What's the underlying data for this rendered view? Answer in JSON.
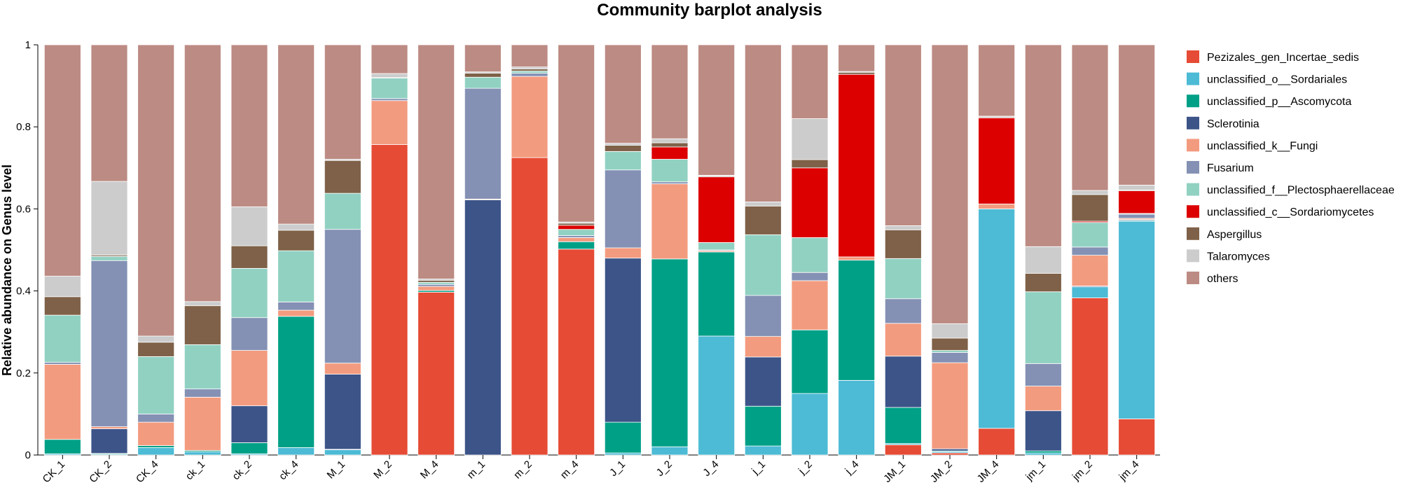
{
  "chart_data": {
    "type": "bar",
    "stacked": true,
    "title": "Community barplot analysis",
    "xlabel": "",
    "ylabel": "Relative abundance on Genus level",
    "ylim": [
      0,
      1
    ],
    "yticks": [
      "0",
      "0.2",
      "0.4",
      "0.6",
      "0.8",
      "1"
    ],
    "grid": false,
    "legend_position": "right",
    "categories": [
      "CK_1",
      "CK_2",
      "CK_4",
      "ck_1",
      "ck_2",
      "ck_4",
      "M_1",
      "M_2",
      "M_4",
      "m_1",
      "m_2",
      "m_4",
      "J_1",
      "J_2",
      "J_4",
      "j_1",
      "j_2",
      "j_4",
      "JM_1",
      "JM_2",
      "JM_4",
      "jm_1",
      "jm_2",
      "jm_4"
    ],
    "series": [
      {
        "name": "Pezizales_gen_Incertae_sedis",
        "color": "#e64b35",
        "values": [
          0,
          0,
          0,
          0,
          0,
          0,
          0,
          0.757,
          0.397,
          0,
          0.725,
          0.502,
          0,
          0,
          0,
          0,
          0,
          0,
          0.025,
          0.005,
          0.065,
          0,
          0.383,
          0.088
        ]
      },
      {
        "name": "unclassified_o__Sordariales",
        "color": "#4dbbd5",
        "values": [
          0.003,
          0.002,
          0.018,
          0.008,
          0.003,
          0.018,
          0.013,
          0,
          0,
          0,
          0,
          0,
          0.005,
          0.02,
          0.29,
          0.022,
          0.15,
          0.182,
          0.003,
          0.003,
          0.535,
          0.005,
          0.027,
          0.482
        ]
      },
      {
        "name": "unclassified_p__Ascomycota",
        "color": "#00a087",
        "values": [
          0.035,
          0.002,
          0.005,
          0.003,
          0.027,
          0.32,
          0.001,
          0,
          0.004,
          0,
          0,
          0.018,
          0.075,
          0.458,
          0.205,
          0.097,
          0.155,
          0.293,
          0.088,
          0.002,
          0,
          0.005,
          0,
          0.002
        ]
      },
      {
        "name": "Sclerotinia",
        "color": "#3c5488",
        "values": [
          0,
          0.06,
          0,
          0,
          0.09,
          0,
          0.183,
          0,
          0,
          0.622,
          0,
          0,
          0.4,
          0,
          0,
          0.12,
          0,
          0,
          0.125,
          0.005,
          0,
          0.098,
          0.002,
          0.002
        ]
      },
      {
        "name": "unclassified_k__Fungi",
        "color": "#f39b7f",
        "values": [
          0.183,
          0.005,
          0.057,
          0.13,
          0.135,
          0.015,
          0.027,
          0.107,
          0.01,
          0.002,
          0.198,
          0.01,
          0.025,
          0.183,
          0.003,
          0.05,
          0.12,
          0.008,
          0.08,
          0.21,
          0.012,
          0.06,
          0.075,
          0.003
        ]
      },
      {
        "name": "Fusarium",
        "color": "#8491b4",
        "values": [
          0.005,
          0.405,
          0.02,
          0.02,
          0.08,
          0.02,
          0.326,
          0.005,
          0.005,
          0.27,
          0.008,
          0.005,
          0.19,
          0.005,
          0.002,
          0.1,
          0.02,
          0,
          0.06,
          0.025,
          0,
          0.055,
          0.02,
          0.01
        ]
      },
      {
        "name": "unclassified_f__Plectosphaerellaceae",
        "color": "#91d1c2",
        "values": [
          0.115,
          0.01,
          0.14,
          0.108,
          0.12,
          0.125,
          0.088,
          0.05,
          0.005,
          0.027,
          0.005,
          0.015,
          0.045,
          0.055,
          0.018,
          0.148,
          0.085,
          0,
          0.098,
          0.005,
          0,
          0.175,
          0.06,
          0.002
        ]
      },
      {
        "name": "unclassified_c__Sordariomycetes",
        "color": "#dc0000",
        "values": [
          0,
          0,
          0,
          0,
          0,
          0,
          0,
          0,
          0,
          0,
          0,
          0.01,
          0,
          0.03,
          0.16,
          0,
          0.17,
          0.445,
          0,
          0,
          0.21,
          0,
          0.003,
          0.055
        ]
      },
      {
        "name": "Aspergillus",
        "color": "#7e6148",
        "values": [
          0.045,
          0.003,
          0.035,
          0.095,
          0.055,
          0.05,
          0.08,
          0.001,
          0.005,
          0.01,
          0.005,
          0.005,
          0.015,
          0.01,
          0.002,
          0.07,
          0.02,
          0.005,
          0.07,
          0.03,
          0.002,
          0.045,
          0.065,
          0.002
        ]
      },
      {
        "name": "Talaromyces",
        "color": "#cccccc",
        "values": [
          0.05,
          0.18,
          0.015,
          0.01,
          0.095,
          0.015,
          0.003,
          0.01,
          0.003,
          0.003,
          0.005,
          0.003,
          0.005,
          0.01,
          0.002,
          0.01,
          0.1,
          0.002,
          0.01,
          0.035,
          0.002,
          0.065,
          0.01,
          0.012
        ]
      },
      {
        "name": "others",
        "color": "#bc8b83",
        "values": [
          0.564,
          0.333,
          0.71,
          0.626,
          0.395,
          0.437,
          0.279,
          0.07,
          0.571,
          0.066,
          0.054,
          0.432,
          0.24,
          0.229,
          0.318,
          0.383,
          0.18,
          0.065,
          0.441,
          0.68,
          0.174,
          0.492,
          0.355,
          0.342
        ]
      }
    ]
  }
}
